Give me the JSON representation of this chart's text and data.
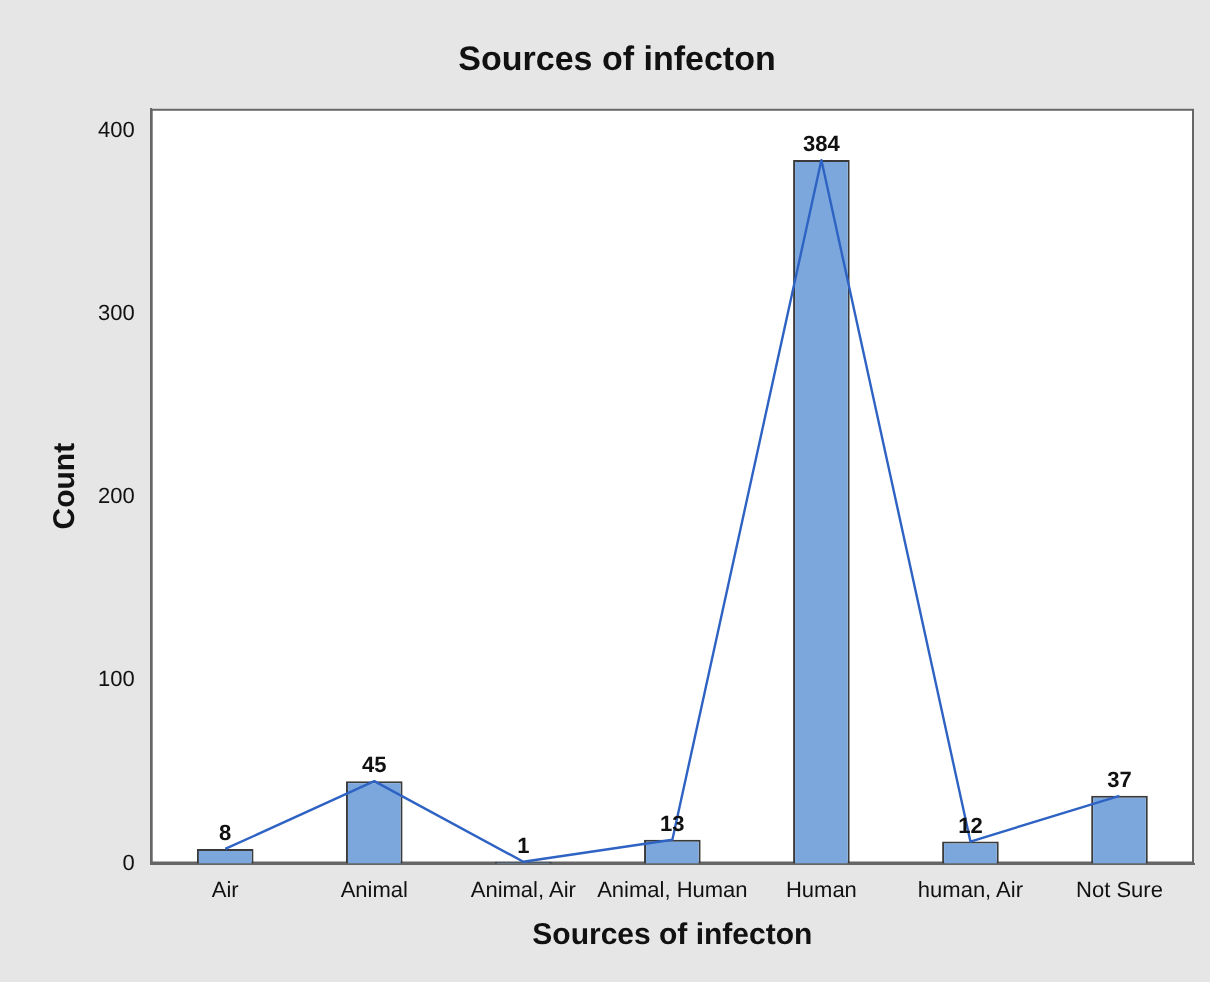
{
  "chart_data": {
    "type": "bar",
    "title": "Sources of infecton",
    "xlabel": "Sources of infecton",
    "ylabel": "Count",
    "categories": [
      "Air",
      "Animal",
      "Animal, Air",
      "Animal, Human",
      "Human",
      "human, Air",
      "Not Sure"
    ],
    "series": [
      {
        "color": "#7ba7dc",
        "values": [
          8,
          45,
          1,
          13,
          384,
          12,
          37
        ],
        "value_labels": [
          "8",
          "45",
          "1",
          "13",
          "384",
          "12",
          "37"
        ]
      },
      {
        "type": "line",
        "color": "#2e63c4",
        "values": [
          8,
          45,
          1,
          13,
          384,
          12,
          37
        ]
      }
    ],
    "ylim": [
      0,
      412
    ],
    "yticks": [
      0,
      100,
      200,
      300,
      400
    ],
    "grid": false,
    "legend": false,
    "marker": "none",
    "line_style": "solid"
  }
}
